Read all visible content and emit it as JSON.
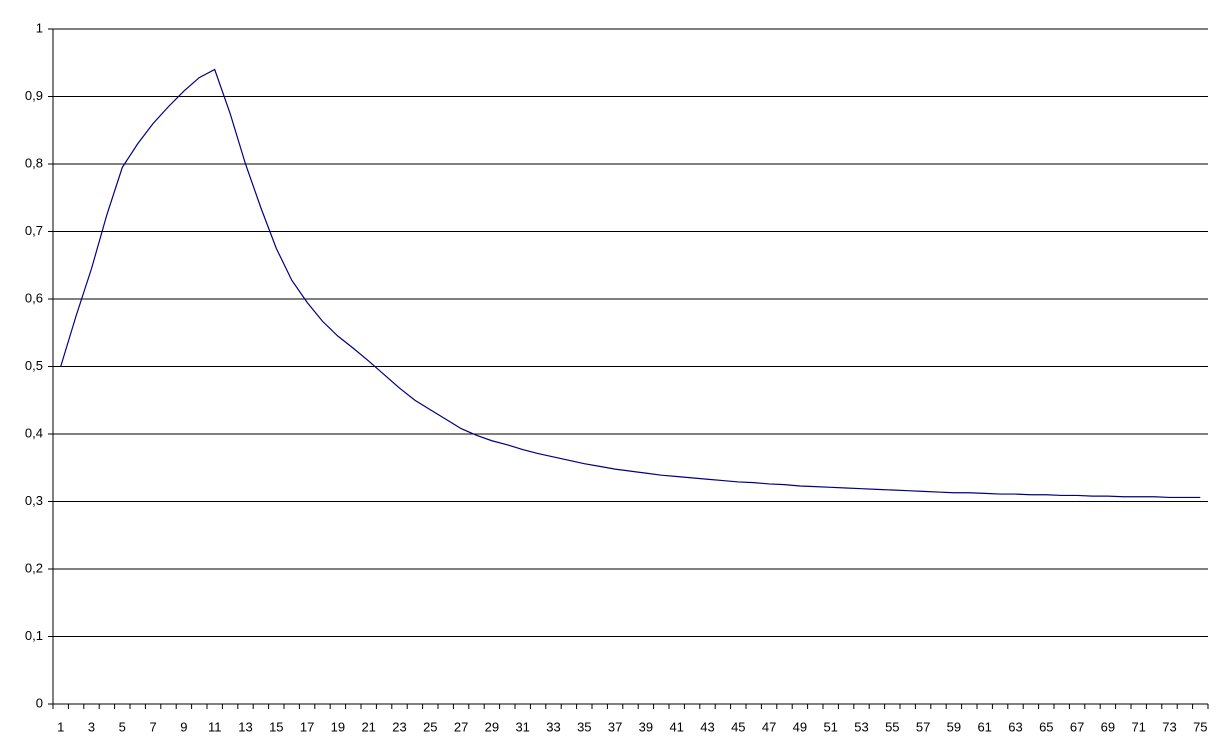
{
  "chart_data": {
    "type": "line",
    "categories": [
      "1",
      null,
      "3",
      null,
      "5",
      null,
      "7",
      null,
      "9",
      null,
      "11",
      null,
      "13",
      null,
      "15",
      null,
      "17",
      null,
      "19",
      null,
      "21",
      null,
      "23",
      null,
      "25",
      null,
      "27",
      null,
      "29",
      null,
      "31",
      null,
      "33",
      null,
      "35",
      null,
      "37",
      null,
      "39",
      null,
      "41",
      null,
      "43",
      null,
      "45",
      null,
      "47",
      null,
      "49",
      null,
      "51",
      null,
      "53",
      null,
      "55",
      null,
      "57",
      null,
      "59",
      null,
      "61",
      null,
      "63",
      null,
      "65",
      null,
      "67",
      null,
      "69",
      null,
      "71",
      null,
      "73",
      null,
      "75"
    ],
    "values": [
      0.5,
      0.575,
      0.645,
      0.725,
      0.795,
      0.83,
      0.86,
      0.885,
      0.908,
      0.928,
      0.94,
      0.875,
      0.8,
      0.735,
      0.675,
      0.628,
      0.595,
      0.567,
      0.545,
      0.527,
      0.508,
      0.488,
      0.468,
      0.45,
      0.436,
      0.422,
      0.408,
      0.398,
      0.39,
      0.384,
      0.377,
      0.371,
      0.366,
      0.361,
      0.356,
      0.352,
      0.348,
      0.345,
      0.342,
      0.339,
      0.337,
      0.335,
      0.333,
      0.331,
      0.329,
      0.328,
      0.326,
      0.325,
      0.323,
      0.322,
      0.321,
      0.32,
      0.319,
      0.318,
      0.317,
      0.316,
      0.315,
      0.314,
      0.313,
      0.313,
      0.312,
      0.311,
      0.311,
      0.31,
      0.31,
      0.309,
      0.309,
      0.308,
      0.308,
      0.307,
      0.307,
      0.307,
      0.306,
      0.306,
      0.306
    ],
    "color": "#000080",
    "ylim": [
      0,
      1
    ],
    "yticks": [
      0,
      {
        "value": 0.1,
        "label": "0,1"
      },
      {
        "value": 0.2,
        "label": "0,2"
      },
      {
        "value": 0.3,
        "label": "0,3"
      },
      {
        "value": 0.4,
        "label": "0,4"
      },
      {
        "value": 0.5,
        "label": "0,5"
      },
      {
        "value": 0.6,
        "label": "0,6"
      },
      {
        "value": 0.7,
        "label": "0,7"
      },
      {
        "value": 0.8,
        "label": "0,8"
      },
      {
        "value": 0.9,
        "label": "0,9"
      },
      1
    ],
    "grid": true
  }
}
